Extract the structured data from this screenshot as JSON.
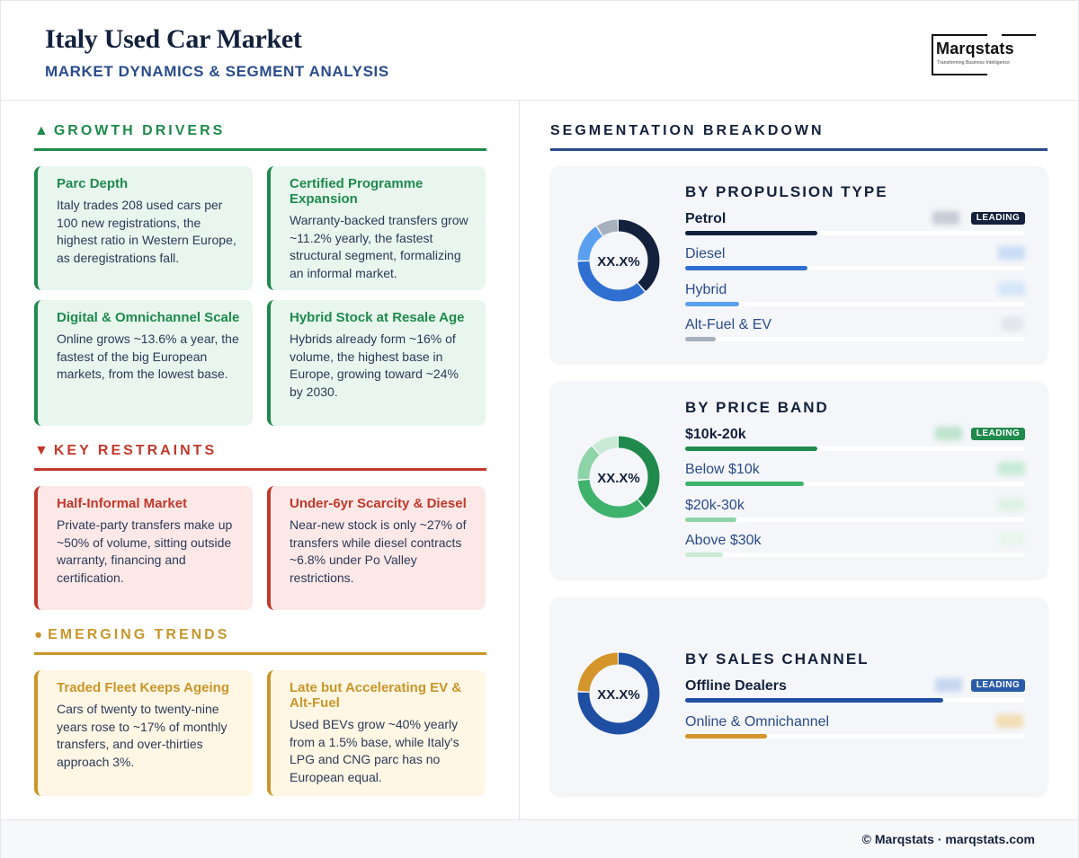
{
  "header": {
    "title": "Italy Used Car Market",
    "subtitle": "MARKET DYNAMICS & SEGMENT ANALYSIS",
    "logo_word": "Marqstats",
    "logo_tagline": "Transforming Business Intelligence"
  },
  "drivers": {
    "heading": "GROWTH DRIVERS",
    "icon": "triangle-up-icon",
    "cards": [
      {
        "title": "Parc Depth",
        "body": "Italy trades 208 used cars per 100 new registrations, the highest ratio in Western Europe, as deregistrations fall."
      },
      {
        "title": "Certified Programme Expansion",
        "body": "Warranty-backed transfers grow ~11.2% yearly, the fastest structural segment, formalizing an informal market."
      },
      {
        "title": "Digital & Omnichannel Scale",
        "body": "Online grows ~13.6% a year, the fastest of the big European markets, from the lowest base."
      },
      {
        "title": "Hybrid Stock at Resale Age",
        "body": "Hybrids already form ~16% of volume, the highest base in Europe, growing toward ~24% by 2030."
      }
    ]
  },
  "restraints": {
    "heading": "KEY RESTRAINTS",
    "icon": "triangle-down-icon",
    "cards": [
      {
        "title": "Half-Informal Market",
        "body": "Private-party transfers make up ~50% of volume, sitting outside warranty, financing and certification."
      },
      {
        "title": "Under-6yr Scarcity & Diesel",
        "body": "Near-new stock is only ~27% of transfers while diesel contracts ~6.8% under Po Valley restrictions."
      }
    ]
  },
  "trends": {
    "heading": "EMERGING TRENDS",
    "icon": "circle-icon",
    "cards": [
      {
        "title": "Traded Fleet Keeps Ageing",
        "body": "Cars of twenty to twenty-nine years rose to ~17% of monthly transfers, and over-thirties approach 3%."
      },
      {
        "title": "Late but Accelerating EV & Alt-Fuel",
        "body": "Used BEVs grow ~40% yearly from a 1.5% base, while Italy's LPG and CNG parc has no European equal."
      }
    ]
  },
  "segmentation": {
    "heading": "SEGMENTATION BREAKDOWN",
    "leading_label": "LEADING",
    "panels": [
      {
        "title": "BY PROPULSION TYPE",
        "donut_label": "XX.X%",
        "items": [
          {
            "label": "Petrol",
            "share": 0.39,
            "color": "#14213d"
          },
          {
            "label": "Diesel",
            "share": 0.36,
            "color": "#2f6fd0"
          },
          {
            "label": "Hybrid",
            "share": 0.16,
            "color": "#5aa0ef"
          },
          {
            "label": "Alt-Fuel & EV",
            "share": 0.09,
            "color": "#a7b0bd"
          }
        ]
      },
      {
        "title": "BY PRICE BAND",
        "donut_label": "XX.X%",
        "items": [
          {
            "label": "$10k-20k",
            "share": 0.39,
            "color": "#1f8a4c"
          },
          {
            "label": "Below $10k",
            "share": 0.35,
            "color": "#3fb36c"
          },
          {
            "label": "$20k-30k",
            "share": 0.15,
            "color": "#8fd3a8"
          },
          {
            "label": "Above $30k",
            "share": 0.11,
            "color": "#c9ead5"
          }
        ]
      },
      {
        "title": "BY SALES CHANNEL",
        "donut_label": "XX.X%",
        "items": [
          {
            "label": "Offline Dealers",
            "share": 0.76,
            "color": "#1e4fa3"
          },
          {
            "label": "Online & Omnichannel",
            "share": 0.24,
            "color": "#d4962a"
          }
        ]
      }
    ]
  },
  "footer": {
    "text": "© Marqstats · marqstats.com"
  }
}
